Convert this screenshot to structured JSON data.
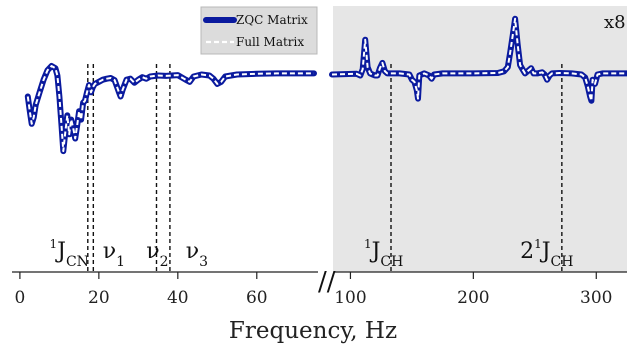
{
  "chart_data": {
    "type": "line",
    "xlabel": "Frequency, Hz",
    "axis_break": "//",
    "inset_scale_label": "x8",
    "x_ticks": [
      {
        "value": 0,
        "label": "0"
      },
      {
        "value": 20,
        "label": "20"
      },
      {
        "value": 40,
        "label": "40"
      },
      {
        "value": 60,
        "label": "60"
      },
      {
        "value": 100,
        "label": "100"
      },
      {
        "value": 200,
        "label": "200"
      },
      {
        "value": 300,
        "label": "300"
      }
    ],
    "legend": {
      "placement": "top-center",
      "entries": [
        {
          "label": "ZQC Matrix",
          "color": "#0a1a9e",
          "style": "solid-thick"
        },
        {
          "label": "Full Matrix",
          "color": "#ffffff",
          "style": "dashed"
        }
      ]
    },
    "series_colors": {
      "zqc": "#0a1a9e",
      "full": "#ffffff"
    },
    "shaded_region_color": "#e6e6e6",
    "segments": [
      {
        "x_range": [
          -2,
          75
        ],
        "points": [
          [
            2,
            -0.5
          ],
          [
            2.5,
            -1.2
          ],
          [
            3,
            -1.8
          ],
          [
            3.5,
            -1.5
          ],
          [
            4,
            -0.9
          ],
          [
            5,
            -0.3
          ],
          [
            6,
            0.3
          ],
          [
            7,
            0.75
          ],
          [
            8,
            0.95
          ],
          [
            9,
            0.85
          ],
          [
            9.5,
            0.5
          ],
          [
            10,
            -0.5
          ],
          [
            10.5,
            -1.8
          ],
          [
            11,
            -3.1
          ],
          [
            11.5,
            -2.2
          ],
          [
            12,
            -1.4
          ],
          [
            12.5,
            -2.3
          ],
          [
            13,
            -1.6
          ],
          [
            13.5,
            -2.0
          ],
          [
            14,
            -2.5
          ],
          [
            14.5,
            -1.9
          ],
          [
            15,
            -1.2
          ],
          [
            15.5,
            -1.6
          ],
          [
            16,
            -0.8
          ],
          [
            16.5,
            -0.7
          ],
          [
            17,
            -0.3
          ],
          [
            17.5,
            0.05
          ],
          [
            18,
            -0.3
          ],
          [
            18.5,
            -0.05
          ],
          [
            19,
            0.1
          ],
          [
            20,
            0.2
          ],
          [
            21,
            0.3
          ],
          [
            22,
            0.35
          ],
          [
            23,
            0.38
          ],
          [
            24,
            0.28
          ],
          [
            25,
            -0.25
          ],
          [
            25.5,
            -0.5
          ],
          [
            26,
            -0.2
          ],
          [
            27,
            0.3
          ],
          [
            28,
            0.35
          ],
          [
            29,
            0.15
          ],
          [
            30,
            0.3
          ],
          [
            31,
            0.42
          ],
          [
            32,
            0.35
          ],
          [
            33,
            0.45
          ],
          [
            35,
            0.5
          ],
          [
            37,
            0.48
          ],
          [
            40,
            0.52
          ],
          [
            42,
            0.3
          ],
          [
            43,
            0.2
          ],
          [
            44,
            0.45
          ],
          [
            46,
            0.55
          ],
          [
            48,
            0.5
          ],
          [
            49,
            0.35
          ],
          [
            50,
            0.1
          ],
          [
            51,
            0.2
          ],
          [
            52,
            0.45
          ],
          [
            55,
            0.55
          ],
          [
            60,
            0.58
          ],
          [
            65,
            0.6
          ],
          [
            70,
            0.6
          ],
          [
            74.5,
            0.6
          ]
        ]
      },
      {
        "x_range": [
          85,
          325
        ],
        "points": [
          [
            85,
            0.55
          ],
          [
            105,
            0.58
          ],
          [
            108,
            0.5
          ],
          [
            110,
            0.8
          ],
          [
            112,
            2.2
          ],
          [
            114,
            0.9
          ],
          [
            116,
            0.6
          ],
          [
            118,
            0.55
          ],
          [
            120,
            0.5
          ],
          [
            122,
            0.5
          ],
          [
            124,
            0.85
          ],
          [
            126,
            1.1
          ],
          [
            128,
            0.7
          ],
          [
            130,
            0.6
          ],
          [
            140,
            0.6
          ],
          [
            148,
            0.55
          ],
          [
            150,
            0.3
          ],
          [
            152,
            0.2
          ],
          [
            154,
            -0.2
          ],
          [
            155,
            -0.6
          ],
          [
            156,
            0.5
          ],
          [
            158,
            0.55
          ],
          [
            160,
            0.6
          ],
          [
            164,
            0.5
          ],
          [
            166,
            0.35
          ],
          [
            168,
            0.55
          ],
          [
            175,
            0.6
          ],
          [
            200,
            0.6
          ],
          [
            220,
            0.62
          ],
          [
            225,
            0.7
          ],
          [
            228,
            0.9
          ],
          [
            230,
            1.6
          ],
          [
            232,
            2.4
          ],
          [
            234,
            3.2
          ],
          [
            236,
            2.0
          ],
          [
            238,
            1.0
          ],
          [
            240,
            0.8
          ],
          [
            242,
            0.6
          ],
          [
            245,
            0.75
          ],
          [
            247,
            0.85
          ],
          [
            249,
            0.6
          ],
          [
            252,
            0.6
          ],
          [
            256,
            0.65
          ],
          [
            258,
            0.55
          ],
          [
            260,
            0.3
          ],
          [
            262,
            0.5
          ],
          [
            264,
            0.6
          ],
          [
            270,
            0.62
          ],
          [
            280,
            0.6
          ],
          [
            288,
            0.55
          ],
          [
            291,
            0.4
          ],
          [
            293,
            0.0
          ],
          [
            295,
            -0.5
          ],
          [
            296,
            -0.7
          ],
          [
            297,
            0.3
          ],
          [
            299,
            0.1
          ],
          [
            301,
            0.55
          ],
          [
            305,
            0.6
          ],
          [
            325,
            0.6
          ]
        ]
      }
    ],
    "vertical_markers": [
      {
        "x": 17.2,
        "segment": 0
      },
      {
        "x": 18.6,
        "segment": 0
      },
      {
        "x": 34.6,
        "segment": 0
      },
      {
        "x": 38.0,
        "segment": 0
      },
      {
        "x": 133,
        "segment": 1
      },
      {
        "x": 272,
        "segment": 1
      }
    ],
    "annotations": [
      {
        "x": 7.5,
        "segment": 0,
        "parts": [
          {
            "t": "1",
            "s": "sup"
          },
          {
            "t": "J",
            "s": ""
          },
          {
            "t": "CN",
            "s": "sub"
          }
        ]
      },
      {
        "x": 21,
        "segment": 0,
        "parts": [
          {
            "t": "ν",
            "s": ""
          },
          {
            "t": "1",
            "s": "sub"
          }
        ]
      },
      {
        "x": 32,
        "segment": 0,
        "parts": [
          {
            "t": "ν",
            "s": ""
          },
          {
            "t": "2",
            "s": "sub"
          }
        ]
      },
      {
        "x": 42,
        "segment": 0,
        "parts": [
          {
            "t": "ν",
            "s": ""
          },
          {
            "t": "3",
            "s": "sub"
          }
        ]
      },
      {
        "x": 111,
        "segment": 1,
        "parts": [
          {
            "t": "1",
            "s": "sup"
          },
          {
            "t": "J",
            "s": ""
          },
          {
            "t": "CH",
            "s": "sub"
          }
        ]
      },
      {
        "x": 238,
        "segment": 1,
        "parts": [
          {
            "t": "2",
            "s": ""
          },
          {
            "t": "1",
            "s": "sup"
          },
          {
            "t": "J",
            "s": ""
          },
          {
            "t": "CH",
            "s": "sub"
          }
        ]
      }
    ]
  }
}
